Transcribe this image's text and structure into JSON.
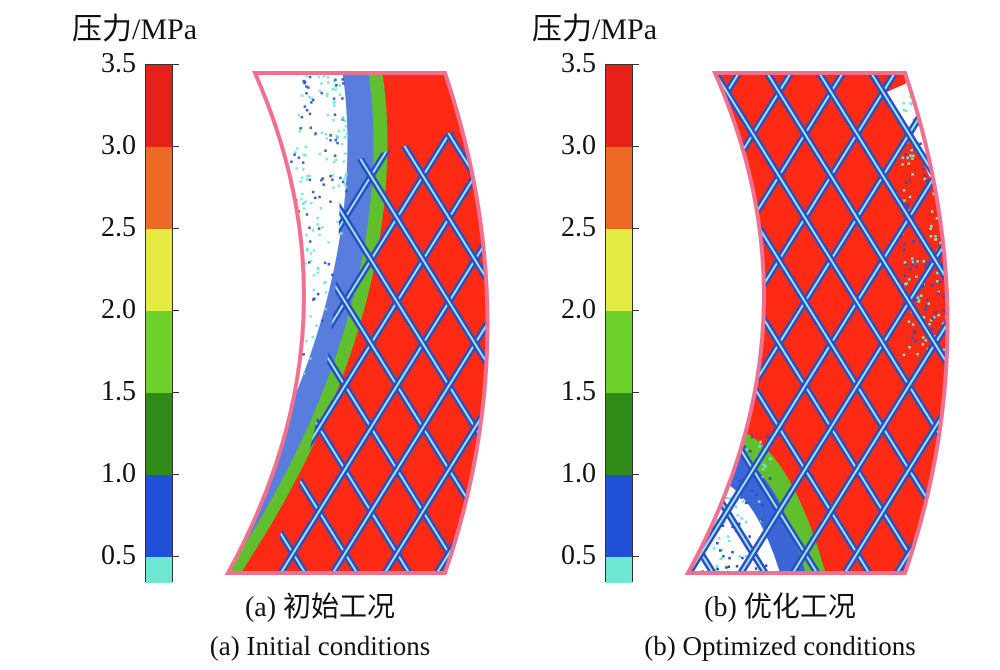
{
  "colors": {
    "outline": "#f07090",
    "band_colors": [
      "#6ee8d2",
      "#2050d8",
      "#2f8a18",
      "#6ed02a",
      "#e4ec44",
      "#ec6a26",
      "#e8201a"
    ],
    "ribbon": "#2a4ec8",
    "pressure_hi": "#ff2a14"
  },
  "panels": [
    {
      "id": "a",
      "unit_label": "压力/MPa",
      "ticks": [
        "3.5",
        "3.0",
        "2.5",
        "2.0",
        "1.5",
        "1.0",
        "0.5"
      ],
      "caption_zh": "(a) 初始工况",
      "caption_en": "(a) Initial conditions"
    },
    {
      "id": "b",
      "unit_label": "压力/MPa",
      "ticks": [
        "3.5",
        "3.0",
        "2.5",
        "2.0",
        "1.5",
        "1.0",
        "0.5"
      ],
      "caption_zh": "(b) 优化工况",
      "caption_en": "(b) Optimized conditions"
    }
  ]
}
